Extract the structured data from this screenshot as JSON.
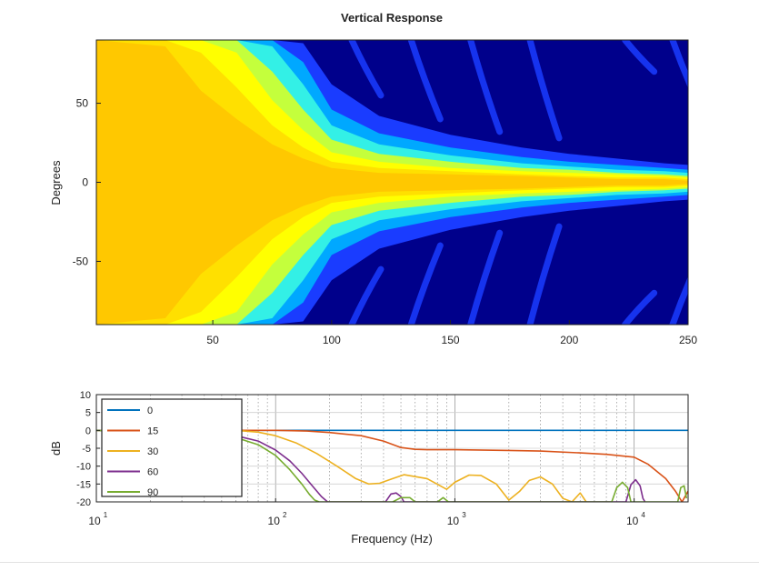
{
  "chart_data": [
    {
      "type": "heatmap",
      "title": "Vertical Response",
      "xlabel": "",
      "ylabel": "Degrees",
      "xlim": [
        1,
        250
      ],
      "ylim": [
        -90,
        90
      ],
      "xticks": [
        50,
        100,
        150,
        200,
        250
      ],
      "yticks": [
        -50,
        0,
        50
      ],
      "x_tick_labels": [
        "50",
        "100",
        "150",
        "200",
        "250"
      ],
      "y_tick_labels": [
        "-50",
        "0",
        "50"
      ],
      "colormap": [
        "#00008b",
        "#1a3cff",
        "#00a8ff",
        "#33f0e6",
        "#c4ff3c",
        "#ffff00",
        "#ffe000",
        "#ffc800"
      ],
      "lobe_contours": {
        "description_values": "beam half-width in degrees vs frequency bin for each colour level (level 1 = dark blue edge ... level 7 = orange core)",
        "x": [
          1,
          30,
          45,
          60,
          75,
          88,
          100,
          120,
          150,
          180,
          200,
          220,
          240,
          250
        ],
        "level_1": [
          90,
          90,
          90,
          90,
          90,
          88,
          62,
          42,
          30,
          22,
          18,
          15,
          12,
          11
        ],
        "level_2": [
          90,
          90,
          90,
          90,
          90,
          76,
          46,
          31,
          22,
          16,
          13,
          11,
          9,
          8
        ],
        "level_3": [
          90,
          90,
          90,
          90,
          86,
          62,
          36,
          24,
          17,
          12,
          10,
          8,
          7,
          6
        ],
        "level_4": [
          90,
          90,
          90,
          90,
          70,
          46,
          27,
          18,
          13,
          9,
          8,
          6,
          5,
          4
        ],
        "level_5": [
          90,
          90,
          90,
          82,
          52,
          33,
          19,
          13,
          9,
          7,
          6,
          5,
          4,
          3
        ],
        "level_6": [
          90,
          90,
          82,
          60,
          36,
          22,
          13,
          9,
          7,
          5,
          4,
          3,
          3,
          2
        ],
        "level_7": [
          90,
          86,
          58,
          40,
          24,
          15,
          9,
          6,
          5,
          4,
          3,
          2,
          2,
          1
        ]
      },
      "side_lobes": {
        "x": [
          110,
          135,
          160,
          185,
          225,
          245
        ],
        "angle": [
          55,
          40,
          32,
          28,
          70,
          45
        ]
      },
      "grid": false
    },
    {
      "type": "line",
      "xlabel": "Frequency (Hz)",
      "ylabel": "dB",
      "xscale": "log",
      "xlim": [
        10,
        20000
      ],
      "ylim": [
        -20,
        10
      ],
      "xticks": [
        10,
        100,
        1000,
        10000
      ],
      "x_tick_labels": [
        {
          "base": "10",
          "exp": "1"
        },
        {
          "base": "10",
          "exp": "2"
        },
        {
          "base": "10",
          "exp": "3"
        },
        {
          "base": "10",
          "exp": "4"
        }
      ],
      "yticks": [
        10,
        5,
        0,
        -5,
        -10,
        -15,
        -20
      ],
      "y_tick_labels": [
        "10",
        "5",
        "0",
        "-5",
        "-10",
        "-15",
        "-20"
      ],
      "grid": true,
      "legend_position": "top-left",
      "series": [
        {
          "name": "0",
          "color": "#0072bd",
          "x": [
            10,
            20000
          ],
          "y": [
            0,
            0
          ]
        },
        {
          "name": "15",
          "color": "#d95319",
          "x": [
            10,
            60,
            100,
            150,
            200,
            300,
            400,
            500,
            600,
            700,
            1000,
            2000,
            3000,
            5000,
            7000,
            10000,
            12000,
            15000,
            17000,
            18500,
            20000
          ],
          "y": [
            0,
            0,
            0,
            -0.2,
            -0.6,
            -1.5,
            -3,
            -4.8,
            -5.3,
            -5.4,
            -5.4,
            -5.6,
            -5.8,
            -6.3,
            -6.7,
            -7.5,
            -9.5,
            -13.5,
            -17,
            -20,
            -17
          ]
        },
        {
          "name": "30",
          "color": "#edb120",
          "x": [
            10,
            60,
            80,
            100,
            130,
            170,
            220,
            280,
            330,
            380,
            450,
            520,
            700,
            900,
            1000,
            1200,
            1400,
            1700,
            2000,
            2300,
            2600,
            3000,
            3500,
            4000,
            4500,
            5000,
            5400
          ],
          "y": [
            0,
            0,
            -0.5,
            -1.5,
            -3.5,
            -6.5,
            -10,
            -13.5,
            -15,
            -14.8,
            -13.5,
            -12.4,
            -13.5,
            -16.5,
            -14.5,
            -12.5,
            -12.6,
            -15,
            -19.5,
            -17,
            -14,
            -13,
            -15,
            -19,
            -20,
            -17.5,
            -20
          ]
        },
        {
          "name": "60",
          "color": "#7e2f8e",
          "x": [
            10,
            60,
            80,
            100,
            120,
            140,
            160,
            180,
            195,
            200,
            410,
            440,
            470,
            500,
            520,
            9000,
            9600,
            10200,
            10800,
            11200,
            11500
          ],
          "y": [
            0,
            -1.5,
            -3,
            -5.5,
            -8.5,
            -12,
            -15.5,
            -18.5,
            -20,
            -20,
            -20,
            -17.8,
            -17.5,
            -18.5,
            -20,
            -20,
            -15.2,
            -13.8,
            -15.5,
            -19,
            -20
          ]
        },
        {
          "name": "90",
          "color": "#77ac30",
          "x": [
            10,
            60,
            80,
            100,
            120,
            140,
            155,
            165,
            175,
            450,
            500,
            560,
            600,
            800,
            860,
            920,
            7500,
            8000,
            8600,
            9200,
            9600,
            17500,
            18200,
            19000,
            19600
          ],
          "y": [
            0,
            -2,
            -4,
            -7,
            -11,
            -15,
            -18,
            -19.5,
            -20,
            -20,
            -18.8,
            -18.8,
            -20,
            -20,
            -18.8,
            -20,
            -20,
            -16,
            -14.5,
            -16,
            -20,
            -20,
            -16,
            -15.5,
            -19
          ]
        }
      ]
    }
  ]
}
